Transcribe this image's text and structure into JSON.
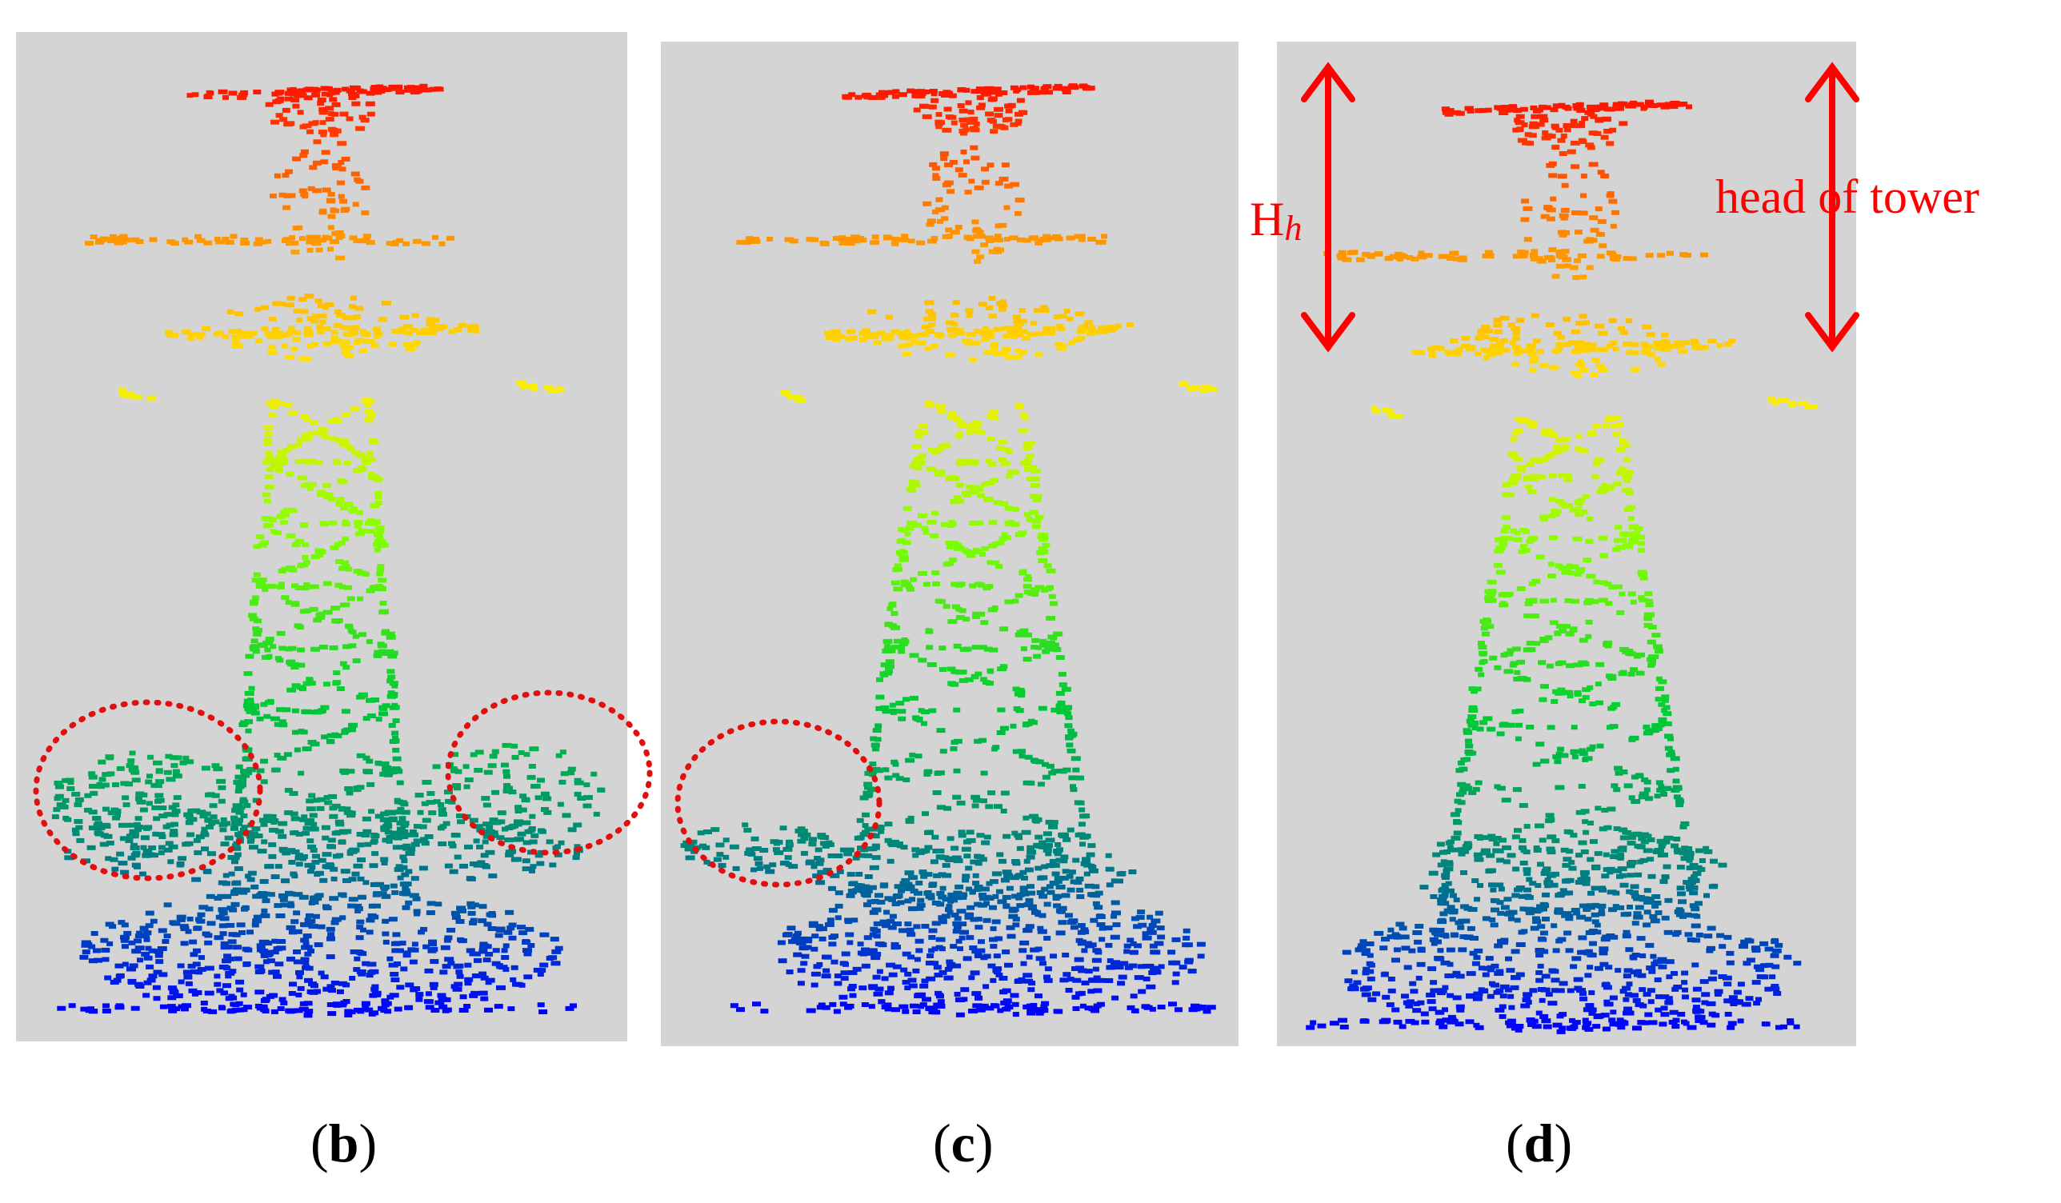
{
  "figure": {
    "panels": [
      {
        "id": "b",
        "label_open": "(",
        "label_letter": "b",
        "label_close": ")",
        "noise_regions_marked": 2
      },
      {
        "id": "c",
        "label_open": "(",
        "label_letter": "c",
        "label_close": ")",
        "noise_regions_marked": 1
      },
      {
        "id": "d",
        "label_open": "(",
        "label_letter": "d",
        "label_close": ")",
        "noise_regions_marked": 0
      }
    ],
    "annotations": {
      "height_symbol": "H",
      "height_subscript": "h",
      "head_label": "head of tower"
    },
    "colors": {
      "panel_background": "#d4d4d4",
      "annotation": "#ff0000",
      "noise_ellipse": "#e01010",
      "elevation_colormap": [
        "#ff0000",
        "#ff8c00",
        "#ffee00",
        "#7fff00",
        "#00cc33",
        "#008080",
        "#0000ff"
      ]
    },
    "icons": [
      "double-headed-arrow",
      "dotted-ellipse"
    ]
  }
}
